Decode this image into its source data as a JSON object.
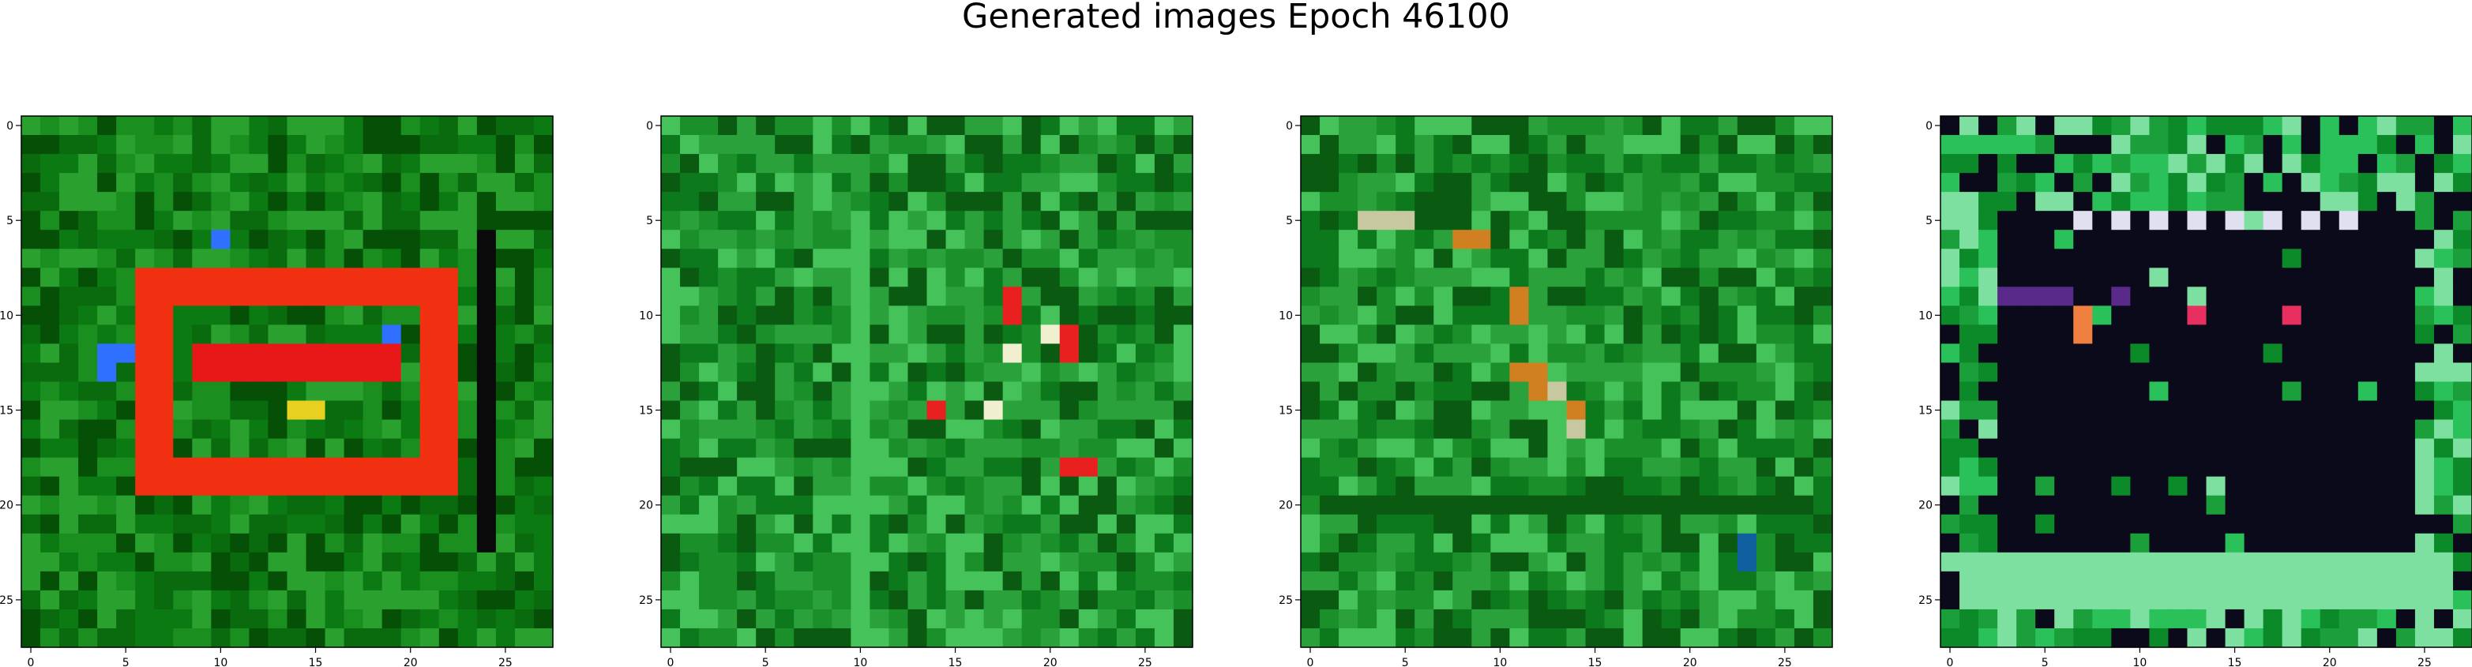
{
  "figure": {
    "title": "Generated images Epoch 46100"
  },
  "chart_data": [
    {
      "type": "heatmap",
      "title": "",
      "xlabel": "",
      "ylabel": "",
      "xlim": [
        -0.5,
        27.5
      ],
      "ylim": [
        27.5,
        -0.5
      ],
      "grid": false,
      "x_ticks": [
        0,
        5,
        10,
        15,
        20,
        25
      ],
      "y_ticks": [
        0,
        5,
        10,
        15,
        20,
        25
      ],
      "grid_size": [
        28,
        28
      ],
      "image_content": "green noise background with a red/orange rectangular outline ring and a red horizontal bar inside; small blue pixels at the left and top-right",
      "palette": [
        "#0c7a12",
        "#1a8f1f",
        "#0a6a0e",
        "#2aa12f",
        "#054f07",
        "#f03010",
        "#ff5a1a",
        "#e81818",
        "#e8d020",
        "#3070ff",
        "#101090",
        "#0a0a0a"
      ],
      "features": [
        {
          "shape": "rect_outline",
          "rows": [
            8,
            19
          ],
          "cols": [
            6,
            22
          ],
          "color": "#f03010"
        },
        {
          "shape": "hbar",
          "rows": [
            12,
            13
          ],
          "cols": [
            9,
            19
          ],
          "color": "#e81818"
        },
        {
          "shape": "pixels",
          "cells": [
            [
              12,
              4
            ],
            [
              13,
              4
            ],
            [
              12,
              5
            ],
            [
              11,
              19
            ],
            [
              6,
              10
            ]
          ],
          "color": "#3070ff"
        },
        {
          "shape": "pixels",
          "cells": [
            [
              15,
              14
            ],
            [
              15,
              15
            ]
          ],
          "color": "#e8d020"
        },
        {
          "shape": "vbar",
          "rows": [
            6,
            22
          ],
          "cols": [
            24,
            24
          ],
          "color": "#0a0a0a"
        }
      ]
    },
    {
      "type": "heatmap",
      "title": "",
      "xlabel": "",
      "ylabel": "",
      "xlim": [
        -0.5,
        27.5
      ],
      "ylim": [
        27.5,
        -0.5
      ],
      "grid": false,
      "x_ticks": [
        0,
        5,
        10,
        15,
        20,
        25
      ],
      "y_ticks": [
        0,
        5,
        10,
        15,
        20,
        25
      ],
      "grid_size": [
        28,
        28
      ],
      "image_content": "green noise with a lighter vertical stripe near column 10 and scattered red / white pixels around columns 14-22",
      "palette": [
        "#1a8f2a",
        "#0c7a1c",
        "#2aa13a",
        "#46c25a",
        "#0a5a12",
        "#7ee08a",
        "#e82020",
        "#f0f0d0",
        "#1060a0"
      ],
      "features": [
        {
          "shape": "vbar",
          "rows": [
            6,
            27
          ],
          "cols": [
            10,
            10
          ],
          "color": "#46c25a"
        },
        {
          "shape": "pixels",
          "cells": [
            [
              9,
              18
            ],
            [
              10,
              18
            ],
            [
              11,
              21
            ],
            [
              12,
              21
            ],
            [
              15,
              14
            ],
            [
              18,
              21
            ],
            [
              18,
              22
            ]
          ],
          "color": "#e82020"
        },
        {
          "shape": "pixels",
          "cells": [
            [
              11,
              20
            ],
            [
              15,
              17
            ],
            [
              12,
              18
            ]
          ],
          "color": "#f0f0d0"
        }
      ]
    },
    {
      "type": "heatmap",
      "title": "",
      "xlabel": "",
      "ylabel": "",
      "xlim": [
        -0.5,
        27.5
      ],
      "ylim": [
        27.5,
        -0.5
      ],
      "grid": false,
      "x_ticks": [
        0,
        5,
        10,
        15,
        20,
        25
      ],
      "y_ticks": [
        0,
        5,
        10,
        15,
        20,
        25
      ],
      "grid_size": [
        28,
        28
      ],
      "image_content": "green noise with a few orange / beige / yellow pixels near the centre and a dark horizontal band near the bottom",
      "palette": [
        "#1a8f2a",
        "#0c7a1c",
        "#2aa13a",
        "#0a5a12",
        "#46c25a",
        "#d08020",
        "#c8c8a0",
        "#e8e0a0",
        "#8a3020",
        "#1060a0"
      ],
      "features": [
        {
          "shape": "pixels",
          "cells": [
            [
              6,
              8
            ],
            [
              6,
              9
            ],
            [
              9,
              11
            ],
            [
              10,
              11
            ],
            [
              13,
              11
            ],
            [
              13,
              12
            ],
            [
              14,
              12
            ],
            [
              15,
              14
            ]
          ],
          "color": "#d08020"
        },
        {
          "shape": "pixels",
          "cells": [
            [
              5,
              3
            ],
            [
              5,
              4
            ],
            [
              5,
              5
            ],
            [
              14,
              13
            ],
            [
              16,
              14
            ]
          ],
          "color": "#c8c8a0"
        },
        {
          "shape": "hbar",
          "rows": [
            20,
            20
          ],
          "cols": [
            1,
            26
          ],
          "color": "#0a5a12"
        },
        {
          "shape": "pixels",
          "cells": [
            [
              22,
              23
            ],
            [
              23,
              23
            ]
          ],
          "color": "#1060a0"
        }
      ]
    },
    {
      "type": "heatmap",
      "title": "",
      "xlabel": "",
      "ylabel": "",
      "xlim": [
        -0.5,
        27.5
      ],
      "ylim": [
        27.5,
        -0.5
      ],
      "grid": false,
      "x_ticks": [
        0,
        5,
        10,
        15,
        20,
        25
      ],
      "y_ticks": [
        0,
        5,
        10,
        15,
        20,
        25
      ],
      "grid_size": [
        28,
        28
      ],
      "image_content": "green border with a large near-black block (rows 5-22, cols 3-24) containing a row of purple / pink / white pixels near its top",
      "palette": [
        "#1a9f3a",
        "#0c8a2a",
        "#2ac15a",
        "#7ee0a0",
        "#0a0a1a",
        "#120a20",
        "#5a2a8a",
        "#e0e0f0",
        "#e83060",
        "#f08040"
      ],
      "features": [
        {
          "shape": "block",
          "rows": [
            5,
            22
          ],
          "cols": [
            3,
            24
          ],
          "color": "#0a0a1a"
        },
        {
          "shape": "pixels",
          "cells": [
            [
              5,
              7
            ],
            [
              5,
              9
            ],
            [
              5,
              11
            ],
            [
              5,
              13
            ],
            [
              5,
              15
            ],
            [
              5,
              17
            ],
            [
              5,
              19
            ],
            [
              5,
              21
            ]
          ],
          "color": "#e0e0f0"
        },
        {
          "shape": "pixels",
          "cells": [
            [
              9,
              3
            ],
            [
              9,
              4
            ],
            [
              9,
              5
            ],
            [
              9,
              6
            ],
            [
              9,
              9
            ]
          ],
          "color": "#5a2a8a"
        },
        {
          "shape": "pixels",
          "cells": [
            [
              10,
              13
            ],
            [
              10,
              18
            ]
          ],
          "color": "#e83060"
        },
        {
          "shape": "pixels",
          "cells": [
            [
              10,
              7
            ],
            [
              11,
              7
            ]
          ],
          "color": "#f08040"
        },
        {
          "shape": "hbar",
          "rows": [
            23,
            25
          ],
          "cols": [
            1,
            26
          ],
          "color": "#7ee0a0"
        }
      ]
    }
  ]
}
